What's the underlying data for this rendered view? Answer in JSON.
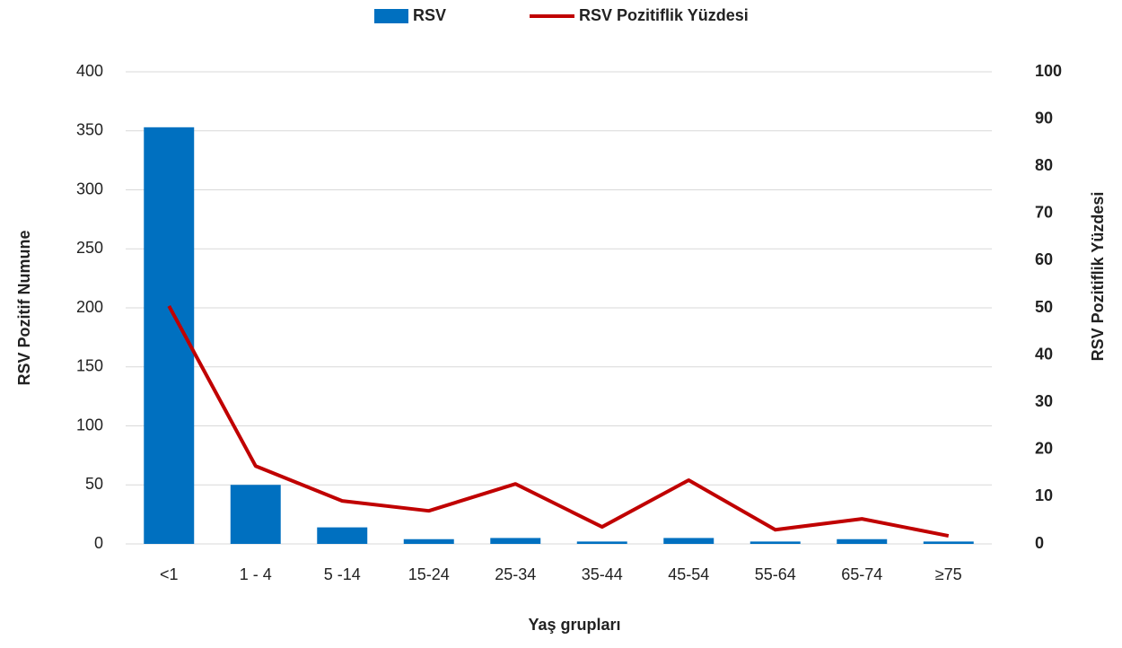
{
  "chart_data": {
    "type": "bar",
    "x_label": "Yaş grupları",
    "y_label": "RSV  Pozitif Numune",
    "y2_label": "RSV Pozitiflik Yüzdesi",
    "categories": [
      "<1",
      "1 - 4",
      "5 -14",
      "15-24",
      "25-34",
      "35-44",
      "45-54",
      "55-64",
      "65-74",
      "≥75"
    ],
    "series": [
      {
        "name": "RSV",
        "color": "#0070c0",
        "type": "bar",
        "values": [
          353,
          50,
          14,
          4,
          5,
          2,
          5,
          2,
          4,
          2
        ]
      },
      {
        "name": "RSV Pozitiflik Yüzdesi",
        "color": "#c00000",
        "type": "line",
        "axis": "y2",
        "values": [
          50.4,
          16.5,
          9.1,
          7.0,
          12.7,
          3.6,
          13.5,
          3.0,
          5.3,
          1.7
        ]
      }
    ],
    "ylim": [
      0,
      400
    ],
    "yticks": [
      0,
      50,
      100,
      150,
      200,
      250,
      300,
      350,
      400
    ],
    "y2lim": [
      0,
      100
    ],
    "y2ticks": [
      0,
      10,
      20,
      30,
      40,
      50,
      60,
      70,
      80,
      90,
      100
    ],
    "grid": true,
    "legend": "top"
  }
}
